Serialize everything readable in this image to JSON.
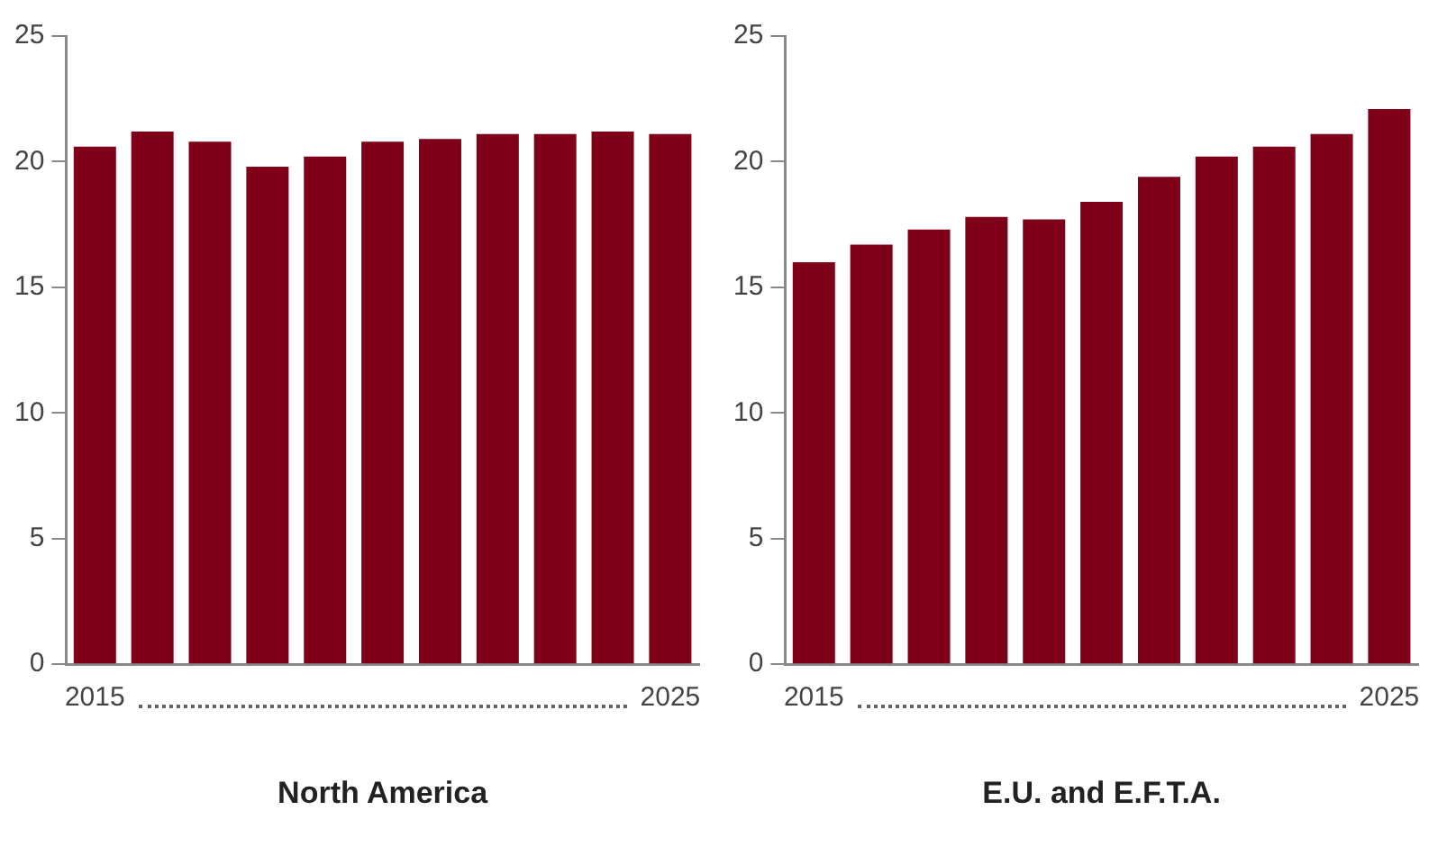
{
  "chart_data": [
    {
      "type": "bar",
      "xlabel": "North America",
      "categories": [
        "2015",
        null,
        null,
        null,
        null,
        null,
        null,
        null,
        null,
        null,
        "2025"
      ],
      "values": [
        20.6,
        21.2,
        20.8,
        19.8,
        20.2,
        20.8,
        20.9,
        21.1,
        21.1,
        21.2,
        21.1
      ],
      "color": "#7f0019",
      "ylim": [
        0,
        25
      ],
      "yticks": [
        0,
        5,
        10,
        15,
        20,
        25
      ],
      "grid": false,
      "legend": false
    },
    {
      "type": "bar",
      "xlabel": "E.U. and E.F.T.A.",
      "categories": [
        "2015",
        null,
        null,
        null,
        null,
        null,
        null,
        null,
        null,
        null,
        "2025"
      ],
      "values": [
        16.0,
        16.7,
        17.3,
        17.8,
        17.7,
        18.4,
        19.4,
        20.2,
        20.6,
        21.1,
        22.1
      ],
      "color": "#7f0019",
      "ylim": [
        0,
        25
      ],
      "yticks": [
        0,
        5,
        10,
        15,
        20,
        25
      ],
      "grid": false,
      "legend": false
    }
  ]
}
